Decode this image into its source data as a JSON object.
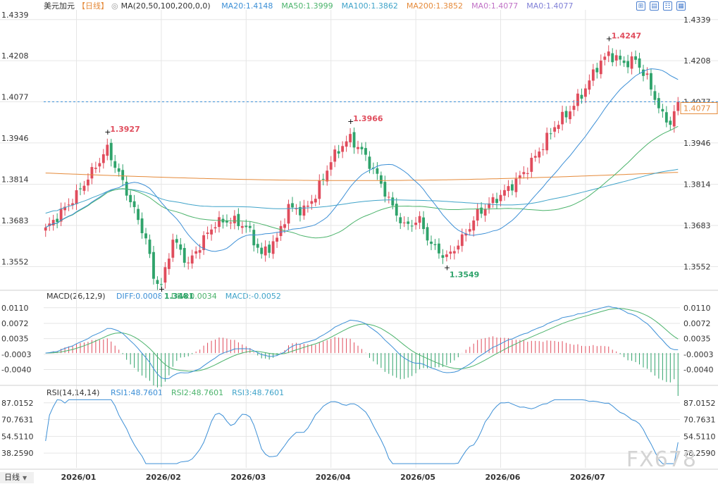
{
  "header": {
    "symbol": "美元加元",
    "period_tag": "【日线】",
    "ma_label": "MA(20,50,100,200,0,0)",
    "ma_values": [
      {
        "text": "MA20:1.4148",
        "color": "#3c8fd6"
      },
      {
        "text": "MA50:1.3999",
        "color": "#4bb36b"
      },
      {
        "text": "MA100:1.3862",
        "color": "#3fa3c9"
      },
      {
        "text": "MA200:1.3852",
        "color": "#e58a3a"
      },
      {
        "text": "MA0:1.4077",
        "color": "#c071c6"
      },
      {
        "text": "MA0:1.4077",
        "color": "#7f7fd6"
      }
    ],
    "macd_label": "MACD(26,12,9)",
    "macd_values": [
      {
        "text": "DIFF:0.0008",
        "color": "#3c8fd6"
      },
      {
        "text": "DEA:0.0034",
        "color": "#4bb36b"
      },
      {
        "text": "MACD:-0.0052",
        "color": "#3fa3c9"
      }
    ],
    "rsi_label": "RSI(14,14,14)",
    "rsi_values": [
      {
        "text": "RSI1:48.7601",
        "color": "#3c8fd6"
      },
      {
        "text": "RSI2:48.7601",
        "color": "#4bb36b"
      },
      {
        "text": "RSI3:48.7601",
        "color": "#3fa3c9"
      }
    ]
  },
  "toolbar": {
    "icons": [
      "grid-icon",
      "layout-icon",
      "table-icon",
      "settings-icon"
    ]
  },
  "period_badge": {
    "label": "日线",
    "caret": "▼"
  },
  "watermark": "FX678",
  "colors": {
    "up": "#e04c5c",
    "down": "#2fa36b",
    "ma20": "#3c8fd6",
    "ma50": "#4bb36b",
    "ma100": "#3fa3c9",
    "ma200": "#e58a3a",
    "rsi": "#3c8fd6",
    "dea": "#4bb36b",
    "grid": "#e6e6e6",
    "last_price": "#e58a3a"
  },
  "chart_data": {
    "type": "candlestick",
    "price_ticks": [
      1.4339,
      1.4208,
      1.4077,
      1.3946,
      1.3814,
      1.3683,
      1.3552
    ],
    "price_ylim": [
      1.3481,
      1.437
    ],
    "last_price": 1.4077,
    "x_labels": [
      "2026/01",
      "2026/02",
      "2026/03",
      "2026/04",
      "2026/05",
      "2026/06",
      "2026/07"
    ],
    "annotations": [
      {
        "text": "1.3927",
        "color": "#e04c5c"
      },
      {
        "text": "1.3966",
        "color": "#e04c5c"
      },
      {
        "text": "1.4247",
        "color": "#e04c5c"
      },
      {
        "text": "1.3481",
        "color": "#2fa36b"
      },
      {
        "text": "1.3549",
        "color": "#2fa36b"
      }
    ],
    "anchors": [
      [
        0,
        1.367
      ],
      [
        8,
        1.378
      ],
      [
        14,
        1.389
      ],
      [
        16,
        1.3927
      ],
      [
        20,
        1.382
      ],
      [
        26,
        1.364
      ],
      [
        28,
        1.352
      ],
      [
        30,
        1.349
      ],
      [
        33,
        1.364
      ],
      [
        37,
        1.356
      ],
      [
        41,
        1.364
      ],
      [
        44,
        1.369
      ],
      [
        48,
        1.37
      ],
      [
        52,
        1.368
      ],
      [
        56,
        1.359
      ],
      [
        60,
        1.364
      ],
      [
        63,
        1.374
      ],
      [
        67,
        1.373
      ],
      [
        70,
        1.378
      ],
      [
        74,
        1.389
      ],
      [
        77,
        1.394
      ],
      [
        79,
        1.396
      ],
      [
        82,
        1.392
      ],
      [
        86,
        1.384
      ],
      [
        90,
        1.374
      ],
      [
        93,
        1.368
      ],
      [
        97,
        1.37
      ],
      [
        100,
        1.362
      ],
      [
        104,
        1.358
      ],
      [
        108,
        1.364
      ],
      [
        112,
        1.372
      ],
      [
        116,
        1.376
      ],
      [
        120,
        1.38
      ],
      [
        124,
        1.385
      ],
      [
        128,
        1.392
      ],
      [
        132,
        1.4
      ],
      [
        136,
        1.405
      ],
      [
        140,
        1.412
      ],
      [
        143,
        1.419
      ],
      [
        146,
        1.423
      ],
      [
        150,
        1.42
      ],
      [
        153,
        1.421
      ],
      [
        156,
        1.415
      ],
      [
        158,
        1.409
      ],
      [
        160,
        1.403
      ],
      [
        162,
        1.401
      ],
      [
        164,
        1.4077
      ]
    ],
    "month_starts": [
      8,
      30,
      52,
      74,
      96,
      118,
      140
    ],
    "rsi_ticks": [
      87.0152,
      70.7631,
      54.511,
      38.259
    ],
    "rsi_ylim": [
      24,
      93
    ],
    "rsi_last": 48.7601,
    "macd_ticks": [
      0.011,
      0.0072,
      0.0035,
      -0.0003,
      -0.004
    ],
    "macd_ylim": [
      -0.0075,
      0.0125
    ],
    "macd_last": {
      "diff": 0.0008,
      "dea": 0.0034,
      "macd": -0.0052
    },
    "ma_last": {
      "ma20": 1.4148,
      "ma50": 1.3999,
      "ma100": 1.3862,
      "ma200": 1.3852
    }
  }
}
